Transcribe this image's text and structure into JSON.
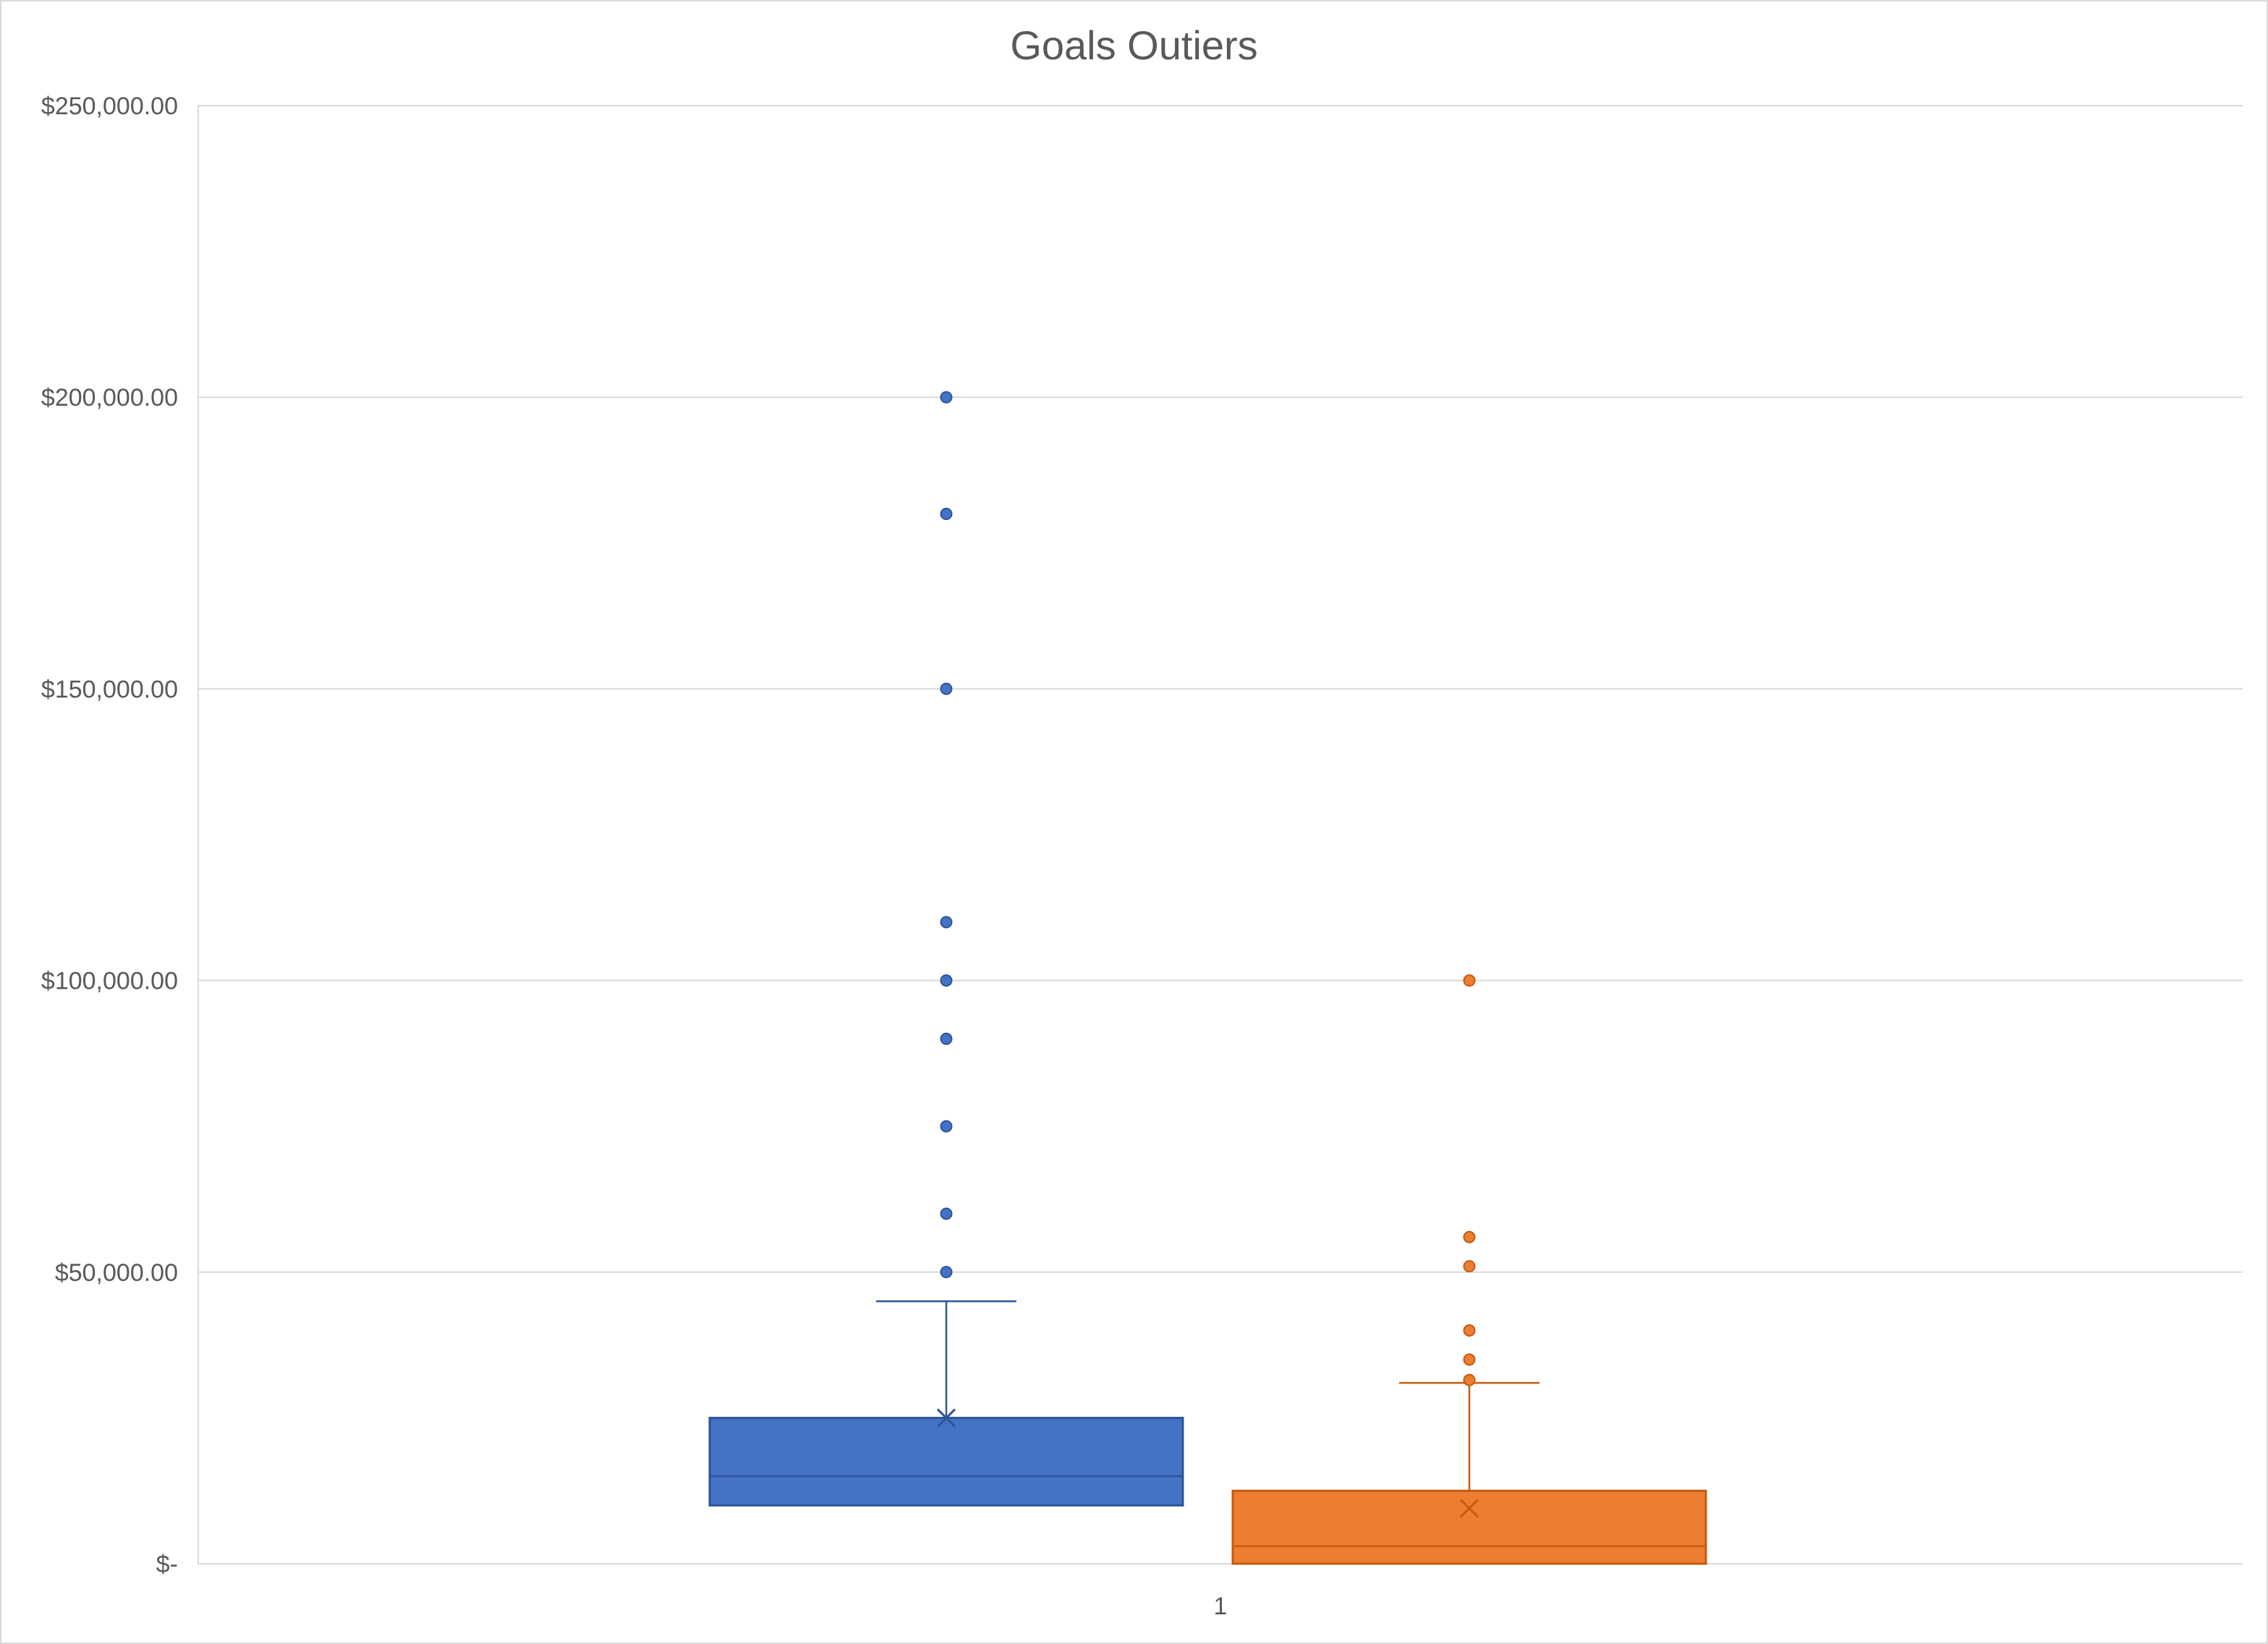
{
  "chart_data": {
    "type": "box",
    "title": "Goals Outiers",
    "xlabel": "",
    "ylabel": "",
    "ylim": [
      0,
      250000
    ],
    "y_tick_labels": [
      "$-",
      "$50,000.00",
      "$100,000.00",
      "$150,000.00",
      "$200,000.00",
      "$250,000.00"
    ],
    "y_tick_values": [
      0,
      50000,
      100000,
      150000,
      200000,
      250000
    ],
    "categories": [
      "1"
    ],
    "grid": true,
    "series": [
      {
        "color": "#4472C4",
        "q1": 10000,
        "median": 15000,
        "q3": 25000,
        "mean": 25000,
        "whisker_low": 10000,
        "whisker_high": 45000,
        "outliers": [
          50000,
          60000,
          75000,
          90000,
          100000,
          110000,
          150000,
          180000,
          200000
        ]
      },
      {
        "color": "#ED7D31",
        "q1": 0,
        "median": 3000,
        "q3": 12500,
        "mean": 9500,
        "whisker_low": 0,
        "whisker_high": 31000,
        "outliers": [
          31500,
          35000,
          40000,
          51000,
          56000,
          100000
        ]
      }
    ]
  }
}
